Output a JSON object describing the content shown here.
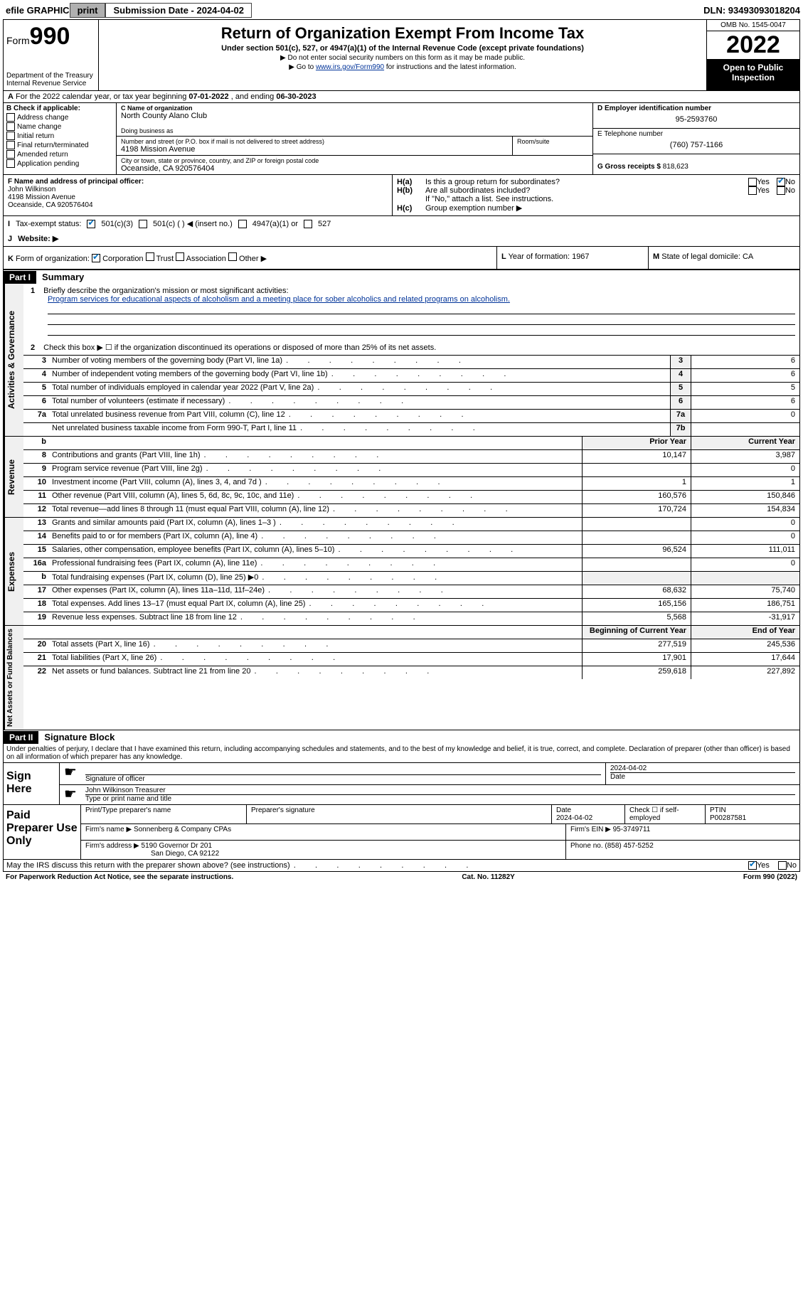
{
  "toolbar": {
    "efile": "efile GRAPHIC",
    "print": "print",
    "sub_label": "Submission Date - 2024-04-02",
    "dln": "DLN: 93493093018204"
  },
  "header": {
    "form_word": "Form",
    "form_num": "990",
    "title": "Return of Organization Exempt From Income Tax",
    "sub1": "Under section 501(c), 527, or 4947(a)(1) of the Internal Revenue Code (except private foundations)",
    "sub2": "▶ Do not enter social security numbers on this form as it may be made public.",
    "sub3_pre": "▶ Go to ",
    "sub3_link": "www.irs.gov/Form990",
    "sub3_post": " for instructions and the latest information.",
    "dept": "Department of the Treasury",
    "irs": "Internal Revenue Service",
    "omb": "OMB No. 1545-0047",
    "year": "2022",
    "open": "Open to Public Inspection"
  },
  "row_a": {
    "label": "A",
    "text_pre": "For the 2022 calendar year, or tax year beginning ",
    "begin": "07-01-2022",
    "mid": " , and ending ",
    "end": "06-30-2023"
  },
  "section_b": {
    "label": "B Check if applicable:",
    "items": [
      "Address change",
      "Name change",
      "Initial return",
      "Final return/terminated",
      "Amended return",
      "Application pending"
    ]
  },
  "section_c": {
    "c_label": "C Name of organization",
    "c_val": "North County Alano Club",
    "dba_label": "Doing business as",
    "addr_label": "Number and street (or P.O. box if mail is not delivered to street address)",
    "room_label": "Room/suite",
    "addr_val": "4198 Mission Avenue",
    "city_label": "City or town, state or province, country, and ZIP or foreign postal code",
    "city_val": "Oceanside, CA  920576404"
  },
  "section_d": {
    "d_label": "D Employer identification number",
    "d_val": "95-2593760",
    "e_label": "E Telephone number",
    "e_val": "(760) 757-1166",
    "g_label": "G Gross receipts $",
    "g_val": "818,623"
  },
  "section_f": {
    "f_label": "F Name and address of principal officer:",
    "name": "John Wilkinson",
    "addr": "4198 Mission Avenue",
    "city": "Oceanside, CA  920576404"
  },
  "section_h": {
    "ha_label": "H(a)",
    "ha_text": "Is this a group return for subordinates?",
    "yes": "Yes",
    "no": "No",
    "hb_label": "H(b)",
    "hb_text": "Are all subordinates included?",
    "hb_note": "If \"No,\" attach a list. See instructions.",
    "hc_label": "H(c)",
    "hc_text": "Group exemption number ▶"
  },
  "section_i": {
    "label": "I",
    "text": "Tax-exempt status:",
    "opt1": "501(c)(3)",
    "opt2": "501(c) (   ) ◀ (insert no.)",
    "opt3": "4947(a)(1) or",
    "opt4": "527"
  },
  "section_j": {
    "label": "J",
    "text": "Website: ▶"
  },
  "section_k": {
    "label": "K",
    "text": "Form of organization:",
    "opt1": "Corporation",
    "opt2": "Trust",
    "opt3": "Association",
    "opt4": "Other ▶",
    "l_label": "L",
    "l_text": "Year of formation: 1967",
    "m_label": "M",
    "m_text": "State of legal domicile: CA"
  },
  "part1": {
    "header": "Part I",
    "title": "Summary",
    "line1_num": "1",
    "line1": "Briefly describe the organization's mission or most significant activities:",
    "mission": "Program services for educational aspects of alcoholism and a meeting place for sober alcoholics and related programs on alcoholism.",
    "line2_num": "2",
    "line2": "Check this box ▶ ☐  if the organization discontinued its operations or disposed of more than 25% of its net assets."
  },
  "governance_label": "Activities & Governance",
  "revenue_label": "Revenue",
  "expenses_label": "Expenses",
  "netassets_label": "Net Assets or Fund Balances",
  "gov_lines": [
    {
      "n": "3",
      "d": "Number of voting members of the governing body (Part VI, line 1a)",
      "box": "3",
      "v": "6"
    },
    {
      "n": "4",
      "d": "Number of independent voting members of the governing body (Part VI, line 1b)",
      "box": "4",
      "v": "6"
    },
    {
      "n": "5",
      "d": "Total number of individuals employed in calendar year 2022 (Part V, line 2a)",
      "box": "5",
      "v": "5"
    },
    {
      "n": "6",
      "d": "Total number of volunteers (estimate if necessary)",
      "box": "6",
      "v": "6"
    },
    {
      "n": "7a",
      "d": "Total unrelated business revenue from Part VIII, column (C), line 12",
      "box": "7a",
      "v": "0"
    },
    {
      "n": "",
      "d": "Net unrelated business taxable income from Form 990-T, Part I, line 11",
      "box": "7b",
      "v": ""
    }
  ],
  "table_headers": {
    "b": "b",
    "prior": "Prior Year",
    "current": "Current Year",
    "begin": "Beginning of Current Year",
    "end": "End of Year"
  },
  "rev_lines": [
    {
      "n": "8",
      "d": "Contributions and grants (Part VIII, line 1h)",
      "p": "10,147",
      "c": "3,987"
    },
    {
      "n": "9",
      "d": "Program service revenue (Part VIII, line 2g)",
      "p": "",
      "c": "0"
    },
    {
      "n": "10",
      "d": "Investment income (Part VIII, column (A), lines 3, 4, and 7d )",
      "p": "1",
      "c": "1"
    },
    {
      "n": "11",
      "d": "Other revenue (Part VIII, column (A), lines 5, 6d, 8c, 9c, 10c, and 11e)",
      "p": "160,576",
      "c": "150,846"
    },
    {
      "n": "12",
      "d": "Total revenue—add lines 8 through 11 (must equal Part VIII, column (A), line 12)",
      "p": "170,724",
      "c": "154,834"
    }
  ],
  "exp_lines": [
    {
      "n": "13",
      "d": "Grants and similar amounts paid (Part IX, column (A), lines 1–3 )",
      "p": "",
      "c": "0"
    },
    {
      "n": "14",
      "d": "Benefits paid to or for members (Part IX, column (A), line 4)",
      "p": "",
      "c": "0"
    },
    {
      "n": "15",
      "d": "Salaries, other compensation, employee benefits (Part IX, column (A), lines 5–10)",
      "p": "96,524",
      "c": "111,011"
    },
    {
      "n": "16a",
      "d": "Professional fundraising fees (Part IX, column (A), line 11e)",
      "p": "",
      "c": "0"
    },
    {
      "n": "b",
      "d": "Total fundraising expenses (Part IX, column (D), line 25) ▶0",
      "p": "",
      "c": ""
    },
    {
      "n": "17",
      "d": "Other expenses (Part IX, column (A), lines 11a–11d, 11f–24e)",
      "p": "68,632",
      "c": "75,740"
    },
    {
      "n": "18",
      "d": "Total expenses. Add lines 13–17 (must equal Part IX, column (A), line 25)",
      "p": "165,156",
      "c": "186,751"
    },
    {
      "n": "19",
      "d": "Revenue less expenses. Subtract line 18 from line 12",
      "p": "5,568",
      "c": "-31,917"
    }
  ],
  "net_lines": [
    {
      "n": "20",
      "d": "Total assets (Part X, line 16)",
      "p": "277,519",
      "c": "245,536"
    },
    {
      "n": "21",
      "d": "Total liabilities (Part X, line 26)",
      "p": "17,901",
      "c": "17,644"
    },
    {
      "n": "22",
      "d": "Net assets or fund balances. Subtract line 21 from line 20",
      "p": "259,618",
      "c": "227,892"
    }
  ],
  "part2": {
    "header": "Part II",
    "title": "Signature Block",
    "perjury": "Under penalties of perjury, I declare that I have examined this return, including accompanying schedules and statements, and to the best of my knowledge and belief, it is true, correct, and complete. Declaration of preparer (other than officer) is based on all information of which preparer has any knowledge.",
    "sign_here": "Sign Here",
    "sig_officer": "Signature of officer",
    "date_label": "Date",
    "date_val": "2024-04-02",
    "officer_name": "John Wilkinson  Treasurer",
    "type_name": "Type or print name and title",
    "paid": "Paid Preparer Use Only",
    "pp_name_label": "Print/Type preparer's name",
    "pp_sig_label": "Preparer's signature",
    "pp_date_label": "Date",
    "pp_date": "2024-04-02",
    "pp_check_label": "Check ☐ if self-employed",
    "ptin_label": "PTIN",
    "ptin": "P00287581",
    "firm_name_label": "Firm's name     ▶",
    "firm_name": "Sonnenberg & Company CPAs",
    "firm_ein_label": "Firm's EIN ▶",
    "firm_ein": "95-3749711",
    "firm_addr_label": "Firm's address ▶",
    "firm_addr1": "5190 Governor Dr 201",
    "firm_addr2": "San Diego, CA  92122",
    "phone_label": "Phone no.",
    "phone": "(858) 457-5252",
    "discuss": "May the IRS discuss this return with the preparer shown above? (see instructions)",
    "paperwork": "For Paperwork Reduction Act Notice, see the separate instructions.",
    "cat": "Cat. No. 11282Y",
    "form_footer": "Form 990 (2022)"
  }
}
